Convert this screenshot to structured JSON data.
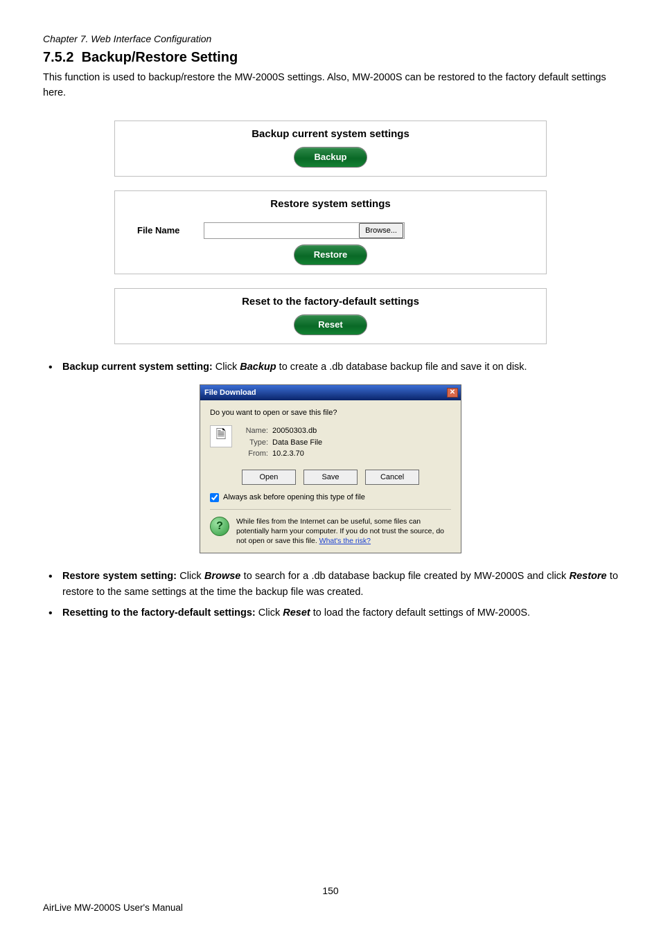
{
  "chapter_header": "Chapter 7.    Web Interface Configuration",
  "section_number": "7.5.2",
  "section_title": "Backup/Restore Setting",
  "intro": "This function is used to backup/restore the MW-2000S settings. Also, MW-2000S can be restored to the factory default settings here.",
  "panel": {
    "backup": {
      "title": "Backup current system settings",
      "button": "Backup"
    },
    "restore": {
      "title": "Restore system settings",
      "file_label": "File Name",
      "browse": "Browse...",
      "button": "Restore"
    },
    "reset": {
      "title": "Reset to the factory-default settings",
      "button": "Reset"
    }
  },
  "bullet_backup": {
    "lead": "Backup current system setting:",
    "mid": " Click ",
    "action": "Backup",
    "tail": " to create a .db database backup file and save it on disk."
  },
  "dialog": {
    "title": "File Download",
    "question": "Do you want to open or save this file?",
    "name_k": "Name:",
    "name_v": "20050303.db",
    "type_k": "Type:",
    "type_v": "Data Base File",
    "from_k": "From:",
    "from_v": "10.2.3.70",
    "open": "Open",
    "save": "Save",
    "cancel": "Cancel",
    "checkbox": "Always ask before opening this type of file",
    "warning_1": "While files from the Internet can be useful, some files can potentially harm your computer. If you do not trust the source, do not open or save this file. ",
    "warning_link": "What's the risk?"
  },
  "bullet_restore": {
    "lead": "Restore system setting:",
    "p1": " Click ",
    "a1": "Browse",
    "p2": " to search for a .db database backup file created by MW-2000S and click ",
    "a2": "Restore",
    "p3": " to restore to the same settings at the time the backup file was created."
  },
  "bullet_reset": {
    "lead": "Resetting to the factory-default settings:",
    "p1": " Click ",
    "a1": "Reset",
    "p2": " to load the factory default settings of MW-2000S."
  },
  "page_number": "150",
  "footer": "AirLive MW-2000S User's Manual"
}
